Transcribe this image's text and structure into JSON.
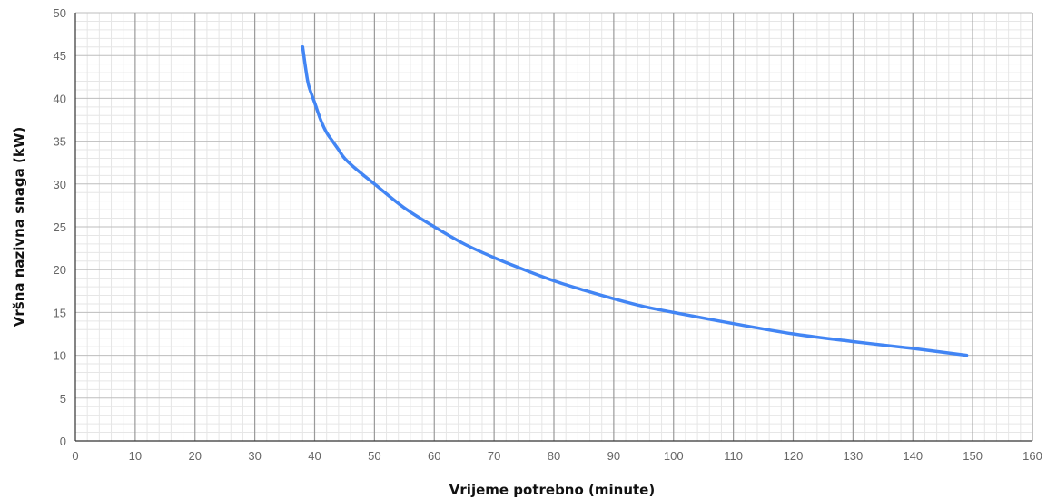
{
  "chart_data": {
    "type": "line",
    "xlabel": "Vrijeme potrebno (minute)",
    "ylabel": "Vršna nazivna snaga (kW)",
    "xlim": [
      0,
      160
    ],
    "ylim": [
      0,
      50
    ],
    "x_ticks": [
      "0",
      "10",
      "20",
      "30",
      "40",
      "50",
      "60",
      "70",
      "80",
      "90",
      "100",
      "110",
      "120",
      "130",
      "140",
      "150",
      "160"
    ],
    "y_ticks": [
      "0",
      "5",
      "10",
      "15",
      "20",
      "25",
      "30",
      "35",
      "40",
      "45",
      "50"
    ],
    "grid": true,
    "series": [
      {
        "color": "#4285f4",
        "points": [
          [
            38,
            46
          ],
          [
            38.5,
            43.5
          ],
          [
            39,
            41.5
          ],
          [
            40,
            39.5
          ],
          [
            41,
            37.5
          ],
          [
            42,
            36
          ],
          [
            43,
            35
          ],
          [
            44,
            34
          ],
          [
            45,
            33
          ],
          [
            47,
            31.7
          ],
          [
            50,
            30
          ],
          [
            55,
            27.2
          ],
          [
            60,
            25
          ],
          [
            65,
            23
          ],
          [
            70,
            21.4
          ],
          [
            75,
            20
          ],
          [
            80,
            18.7
          ],
          [
            85,
            17.6
          ],
          [
            90,
            16.6
          ],
          [
            95,
            15.7
          ],
          [
            100,
            15
          ],
          [
            110,
            13.7
          ],
          [
            120,
            12.5
          ],
          [
            130,
            11.6
          ],
          [
            140,
            10.8
          ],
          [
            149,
            10
          ]
        ]
      }
    ]
  }
}
